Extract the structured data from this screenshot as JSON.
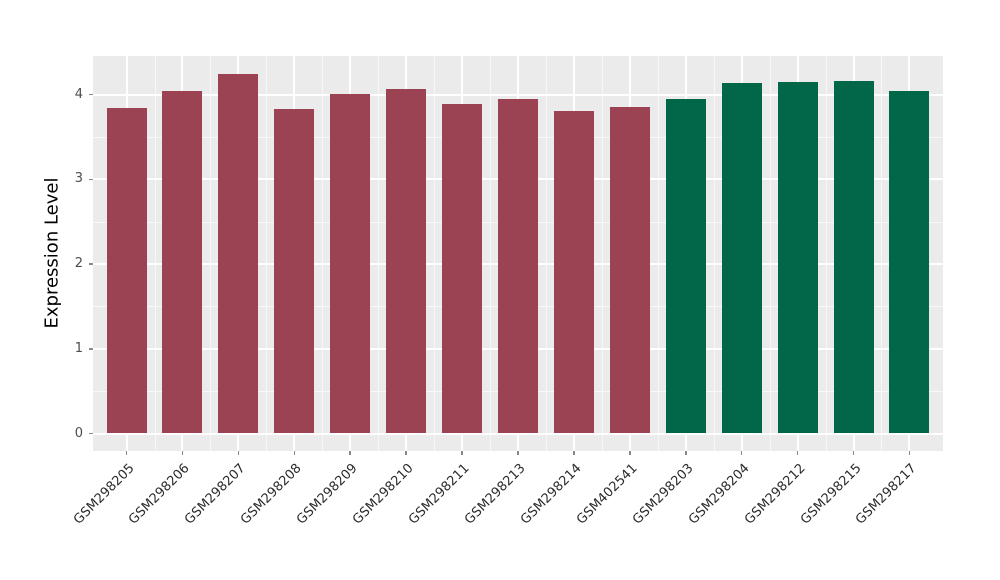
{
  "chart_data": {
    "type": "bar",
    "title": "",
    "xlabel": "",
    "ylabel": "Expression Level",
    "ylim": [
      0,
      4.45
    ],
    "yticks": [
      0,
      1,
      2,
      3,
      4
    ],
    "grid": "on",
    "legend": "none",
    "panel_background": "#EBEBEB",
    "gridline_color": "#FFFFFF",
    "categories": [
      "GSM298205",
      "GSM298206",
      "GSM298207",
      "GSM298208",
      "GSM298209",
      "GSM298210",
      "GSM298211",
      "GSM298213",
      "GSM298214",
      "GSM402541",
      "GSM298203",
      "GSM298204",
      "GSM298212",
      "GSM298215",
      "GSM298217"
    ],
    "values": [
      3.84,
      4.04,
      4.24,
      3.83,
      4.01,
      4.07,
      3.89,
      3.95,
      3.8,
      3.85,
      3.95,
      4.13,
      4.15,
      4.16,
      4.04
    ],
    "colors": [
      "#9B4352",
      "#9B4352",
      "#9B4352",
      "#9B4352",
      "#9B4352",
      "#9B4352",
      "#9B4352",
      "#9B4352",
      "#9B4352",
      "#9B4352",
      "#026648",
      "#026648",
      "#026648",
      "#026648",
      "#026648"
    ],
    "palette": {
      "group1_maroon": "#9B4352",
      "group2_green": "#026648"
    }
  }
}
